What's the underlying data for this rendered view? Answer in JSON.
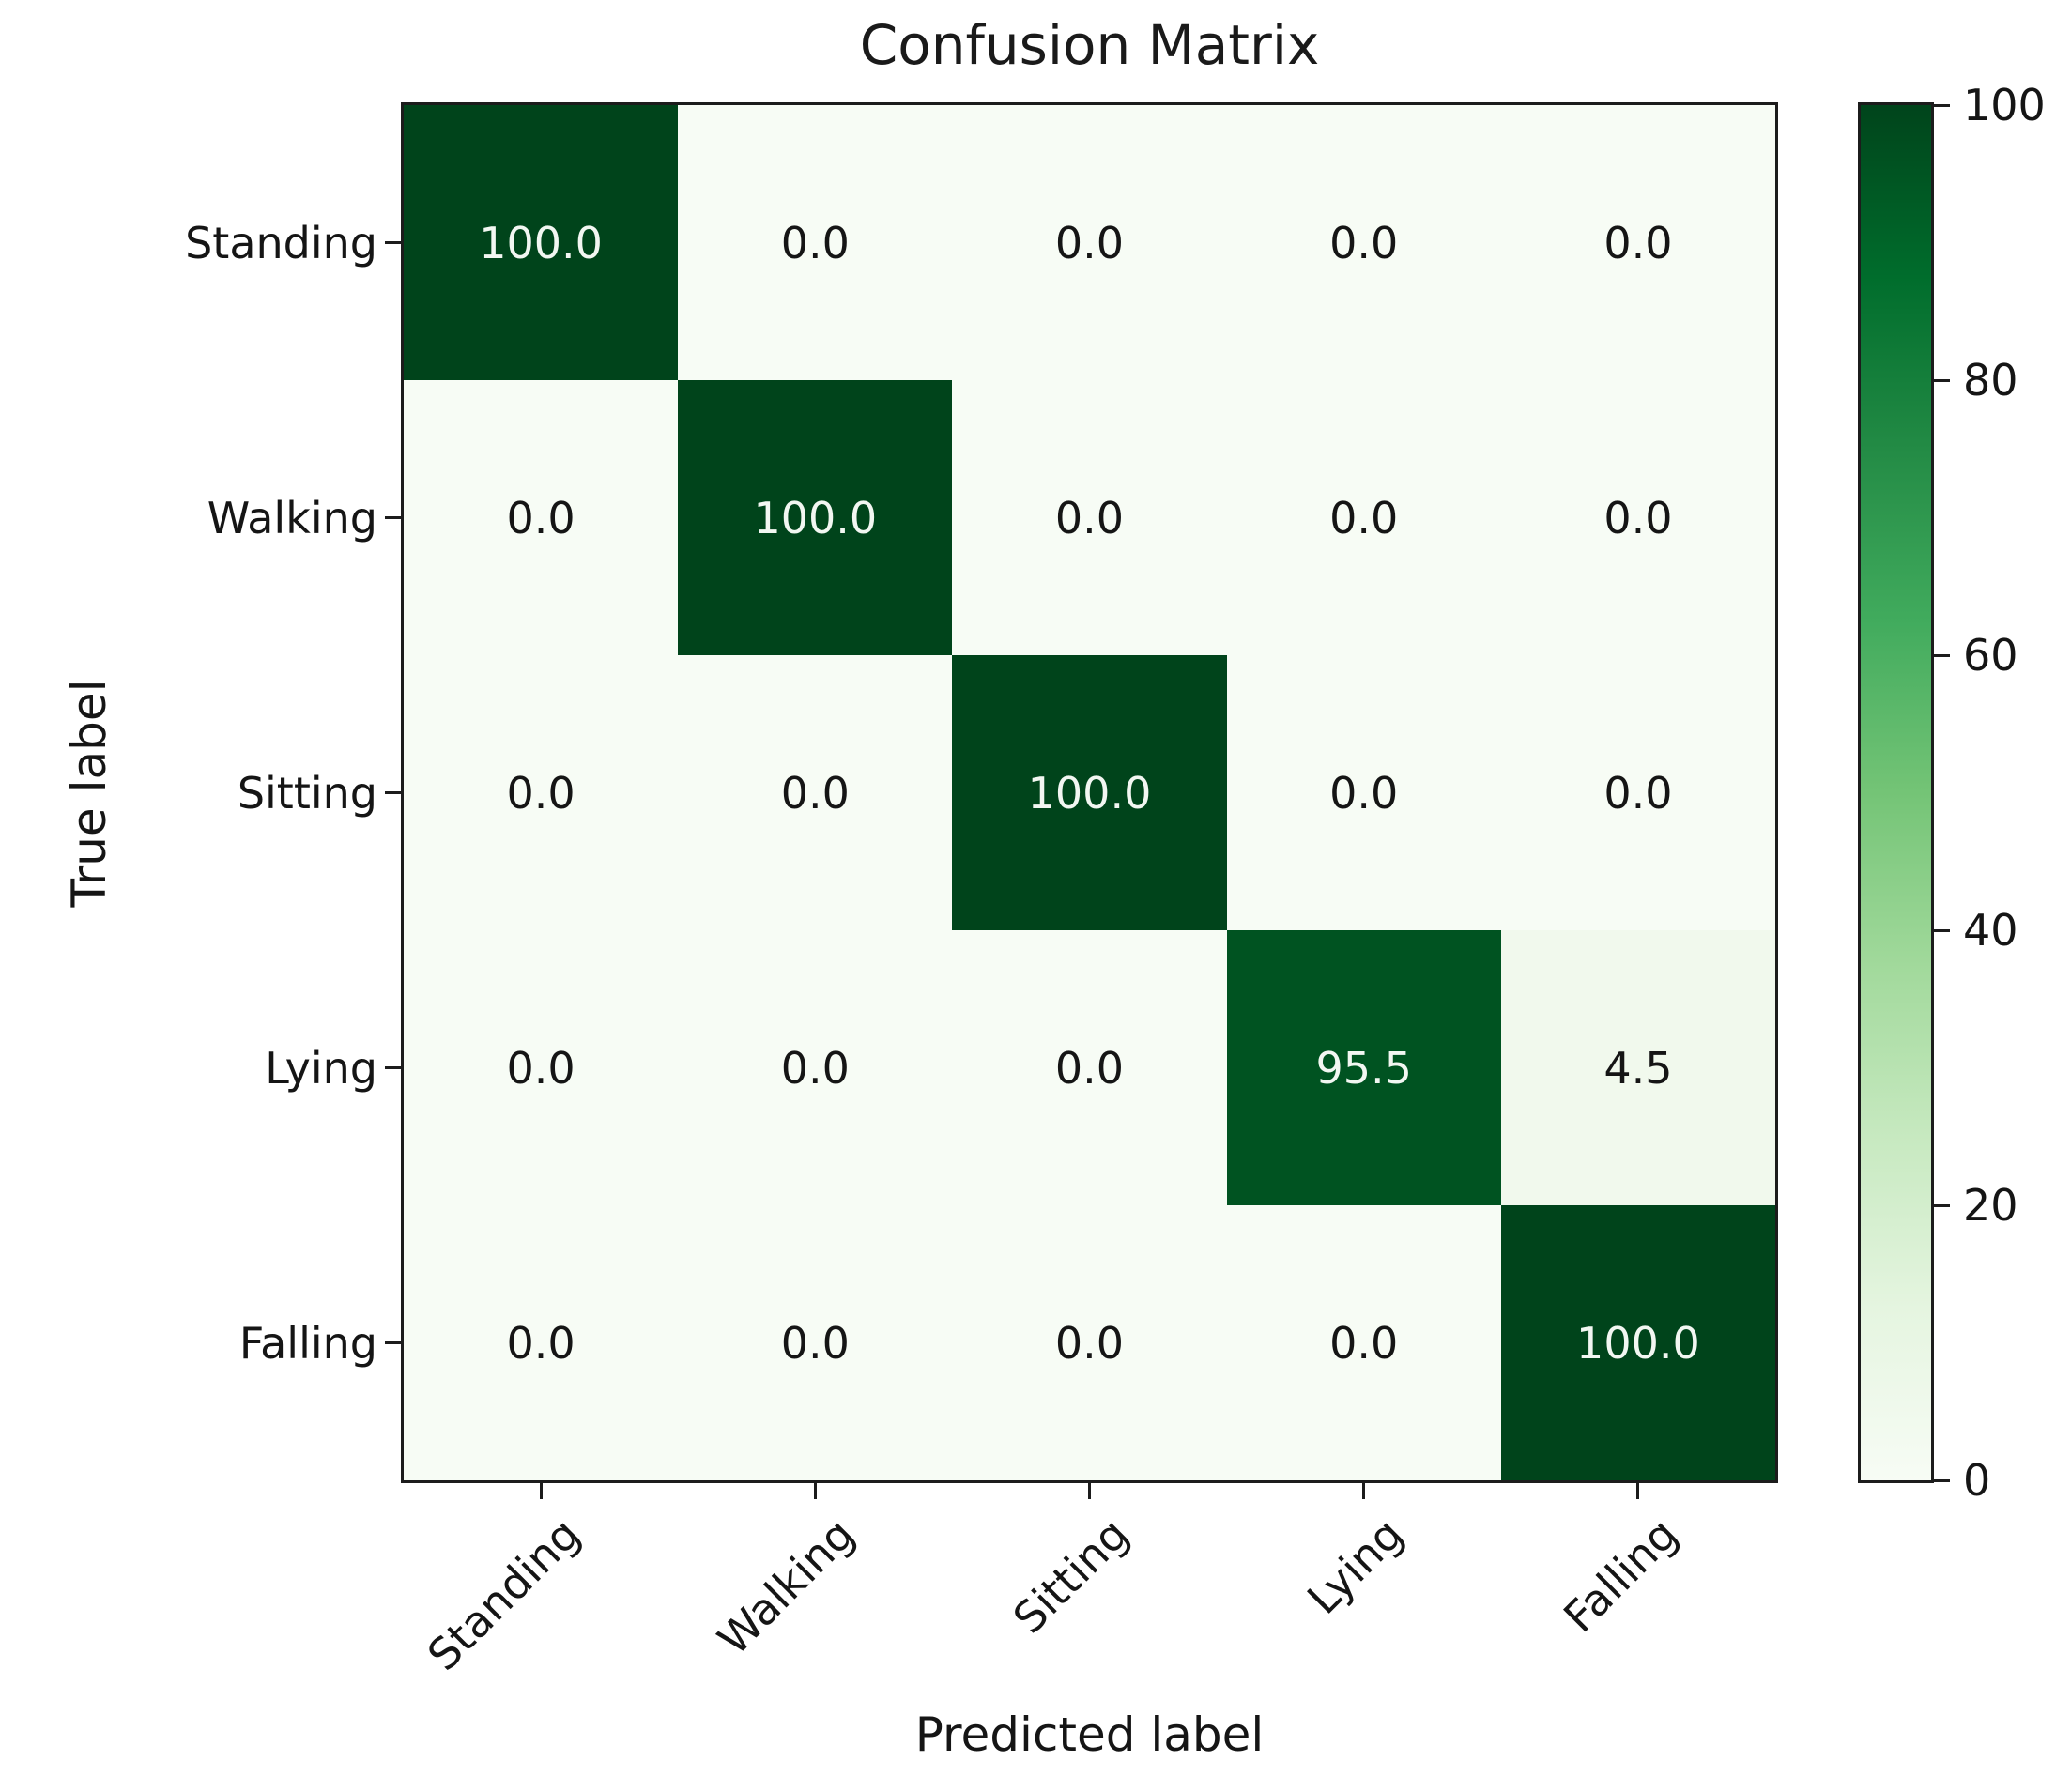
{
  "figure": {
    "title": "Confusion Matrix",
    "xlabel": "Predicted label",
    "ylabel": "True label"
  },
  "chart_data": {
    "type": "heatmap",
    "title": "Confusion Matrix",
    "xlabel": "Predicted label",
    "ylabel": "True label",
    "x_categories": [
      "Standing",
      "Walking",
      "Sitting",
      "Lying",
      "Falling"
    ],
    "y_categories": [
      "Standing",
      "Walking",
      "Sitting",
      "Lying",
      "Falling"
    ],
    "matrix": [
      [
        100.0,
        0.0,
        0.0,
        0.0,
        0.0
      ],
      [
        0.0,
        100.0,
        0.0,
        0.0,
        0.0
      ],
      [
        0.0,
        0.0,
        100.0,
        0.0,
        0.0
      ],
      [
        0.0,
        0.0,
        0.0,
        95.5,
        4.5
      ],
      [
        0.0,
        0.0,
        0.0,
        0.0,
        100.0
      ]
    ],
    "value_decimals": 1,
    "vmin": 0,
    "vmax": 100,
    "colorbar_ticks": [
      "0",
      "20",
      "40",
      "60",
      "80",
      "100"
    ],
    "colorbar_position": "right",
    "grid": false,
    "colormap": {
      "name": "Greens",
      "anchors": [
        [
          0.0,
          "#f7fcf5"
        ],
        [
          0.125,
          "#e5f5e0"
        ],
        [
          0.25,
          "#c7e9c0"
        ],
        [
          0.375,
          "#a1d99b"
        ],
        [
          0.5,
          "#74c476"
        ],
        [
          0.625,
          "#41ab5d"
        ],
        [
          0.75,
          "#238b45"
        ],
        [
          0.875,
          "#006d2c"
        ],
        [
          1.0,
          "#00441b"
        ]
      ]
    },
    "colors": {
      "cell_text_on_dark": "#f2f7f2",
      "cell_text_on_light": "#151515",
      "axis_color": "#1c1c1c",
      "background": "#ffffff",
      "max_cell_color": "#00441b",
      "min_cell_color": "#f7fcf5"
    }
  }
}
